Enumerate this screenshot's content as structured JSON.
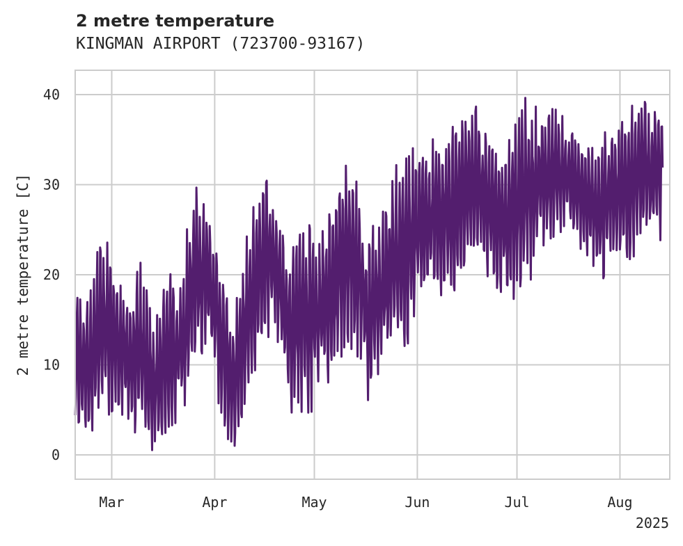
{
  "chart_data": {
    "type": "line",
    "title": "2 metre temperature",
    "subtitle": "KINGMAN AIRPORT (723700-93167)",
    "ylabel": "2 metre temperature [C]",
    "xlabel": "",
    "x_offset_label": "2025",
    "x_ticks": [
      "Mar",
      "Apr",
      "May",
      "Jun",
      "Jul",
      "Aug"
    ],
    "x_tick_dates": [
      "2025-03-01",
      "2025-04-01",
      "2025-05-01",
      "2025-06-01",
      "2025-07-01",
      "2025-08-01"
    ],
    "y_ticks": [
      0,
      10,
      20,
      30,
      40
    ],
    "xlim": [
      "2025-02-18",
      "2025-08-16"
    ],
    "ylim": [
      -2.7,
      42.7
    ],
    "grid": true,
    "series": [
      {
        "color": "#531e6e",
        "x": [
          "2025-02-18",
          "2025-02-22",
          "2025-02-26",
          "2025-03-02",
          "2025-03-06",
          "2025-03-10",
          "2025-03-14",
          "2025-03-18",
          "2025-03-22",
          "2025-03-26",
          "2025-03-30",
          "2025-04-03",
          "2025-04-07",
          "2025-04-11",
          "2025-04-15",
          "2025-04-19",
          "2025-04-23",
          "2025-04-27",
          "2025-05-01",
          "2025-05-05",
          "2025-05-09",
          "2025-05-13",
          "2025-05-17",
          "2025-05-21",
          "2025-05-25",
          "2025-05-29",
          "2025-06-02",
          "2025-06-06",
          "2025-06-10",
          "2025-06-14",
          "2025-06-18",
          "2025-06-22",
          "2025-06-26",
          "2025-06-30",
          "2025-07-04",
          "2025-07-08",
          "2025-07-12",
          "2025-07-16",
          "2025-07-20",
          "2025-07-24",
          "2025-07-28",
          "2025-08-01",
          "2025-08-05",
          "2025-08-09",
          "2025-08-14"
        ],
        "min": [
          3,
          3,
          2,
          5,
          4,
          1,
          0,
          3,
          4,
          10,
          12,
          4,
          -0.5,
          5,
          12,
          14,
          5,
          4,
          5,
          8,
          9,
          11,
          5,
          10,
          12,
          12,
          17,
          18,
          17,
          18,
          22,
          20,
          16,
          17,
          18,
          23,
          24,
          25,
          23,
          20,
          19,
          20,
          22,
          23,
          24
        ],
        "max": [
          18,
          18,
          26,
          22,
          17,
          22,
          15,
          20,
          22,
          30,
          30,
          21,
          17,
          26,
          31.5,
          29,
          24,
          26.5,
          26,
          27,
          33,
          33,
          25,
          26,
          32,
          33,
          35.5,
          35,
          36,
          38.5,
          39,
          37,
          34,
          37,
          40,
          38,
          40,
          38,
          35,
          34,
          38,
          38,
          40.5,
          40.5,
          37
        ],
        "mean": [
          10,
          10,
          14,
          12,
          10,
          11,
          7,
          11,
          12,
          19,
          21,
          12,
          7,
          14,
          22,
          22,
          15,
          15,
          15,
          17,
          20,
          22,
          15,
          18,
          22,
          23,
          26,
          26,
          27,
          28,
          30,
          29,
          26,
          27,
          29,
          30,
          31,
          31,
          29,
          27,
          28,
          29,
          31,
          31,
          30
        ]
      }
    ]
  }
}
